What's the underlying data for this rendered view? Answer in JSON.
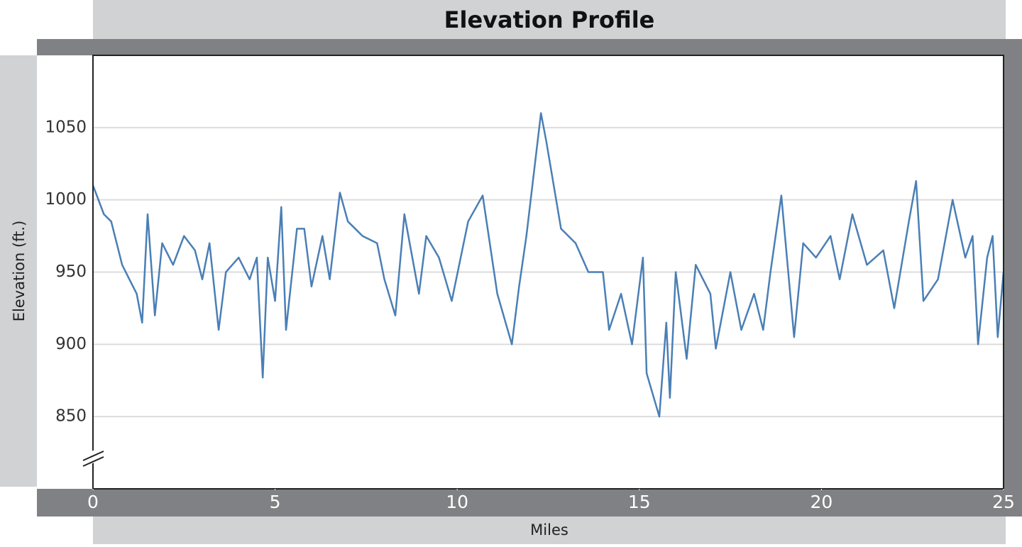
{
  "chart_data": {
    "type": "line",
    "title": "Elevation Profile",
    "x_label": "Miles",
    "y_label": "Elevation (ft.)",
    "xlim": [
      0,
      25
    ],
    "xticks": [
      0,
      5,
      10,
      15,
      20,
      25
    ],
    "ylim": [
      800,
      1100
    ],
    "yticks": [
      850,
      900,
      950,
      1000,
      1050
    ],
    "grid": true,
    "series": [
      {
        "name": "Elevation",
        "color": "#4a7fb5",
        "x": [
          0,
          0.3,
          0.5,
          0.8,
          1.0,
          1.2,
          1.35,
          1.5,
          1.7,
          1.9,
          2.2,
          2.5,
          2.8,
          3.0,
          3.2,
          3.45,
          3.65,
          4.0,
          4.3,
          4.5,
          4.66,
          4.8,
          5.0,
          5.17,
          5.3,
          5.6,
          5.8,
          6.0,
          6.3,
          6.5,
          6.78,
          7.0,
          7.4,
          7.8,
          8.0,
          8.3,
          8.55,
          8.95,
          9.15,
          9.5,
          9.85,
          10.3,
          10.7,
          11.1,
          11.5,
          11.7,
          11.9,
          12.3,
          12.45,
          12.85,
          13.25,
          13.6,
          14.0,
          14.17,
          14.5,
          14.8,
          15.1,
          15.2,
          15.55,
          15.74,
          15.84,
          16.0,
          16.3,
          16.55,
          16.95,
          17.1,
          17.5,
          17.8,
          18.15,
          18.4,
          18.6,
          18.9,
          19.25,
          19.5,
          19.85,
          20.25,
          20.5,
          20.85,
          21.25,
          21.7,
          22.0,
          22.4,
          22.6,
          22.8,
          23.2,
          23.6,
          23.95,
          24.15,
          24.3,
          24.55,
          24.7,
          24.84,
          25
        ],
        "values": [
          1010,
          990,
          985,
          955,
          945,
          935,
          915,
          990,
          920,
          970,
          955,
          975,
          965,
          945,
          970,
          910,
          950,
          960,
          945,
          960,
          877,
          960,
          930,
          995,
          910,
          980,
          980,
          940,
          975,
          945,
          1005,
          985,
          975,
          970,
          945,
          920,
          990,
          935,
          975,
          960,
          930,
          985,
          1003,
          935,
          900,
          940,
          975,
          1060,
          1040,
          980,
          970,
          950,
          950,
          910,
          935,
          900,
          960,
          880,
          850,
          915,
          863,
          950,
          890,
          955,
          935,
          897,
          950,
          910,
          935,
          910,
          950,
          1003,
          905,
          970,
          960,
          975,
          945,
          990,
          955,
          965,
          925,
          985,
          1013,
          930,
          945,
          1000,
          960,
          975,
          900,
          960,
          975,
          905,
          950
        ]
      }
    ]
  }
}
